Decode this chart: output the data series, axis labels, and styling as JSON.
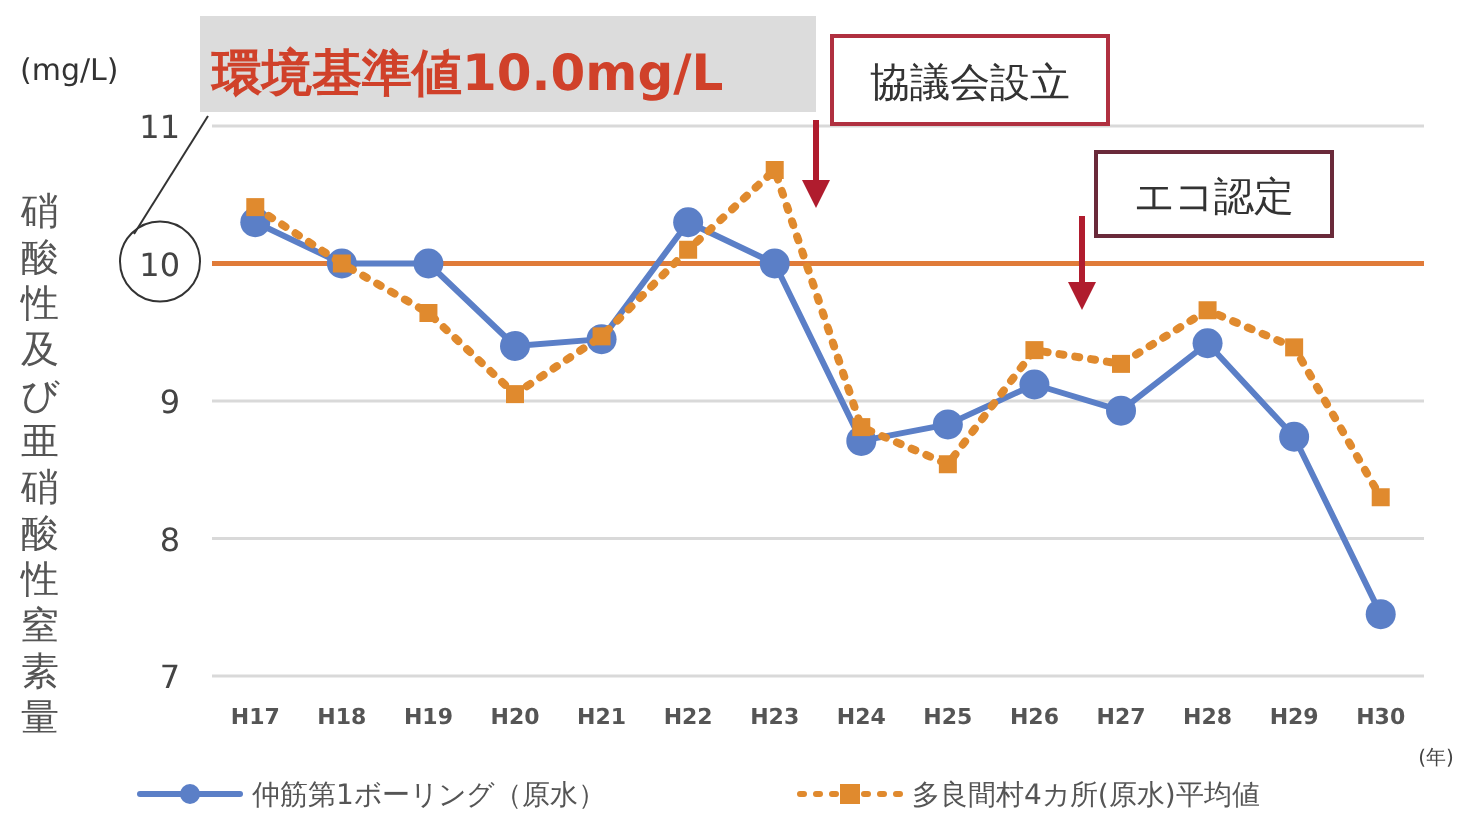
{
  "chart_data": {
    "type": "line",
    "ylabel": "硝酸性及び亜硝酸性窒素量",
    "xlabel": "(年)",
    "categories": [
      "H17",
      "H18",
      "H19",
      "H20",
      "H21",
      "H22",
      "H23",
      "H24",
      "H25",
      "H26",
      "H27",
      "H28",
      "H29",
      "H30"
    ],
    "series": [
      {
        "name": "仲筋第1ボーリング（原水）",
        "color": "#5b7fc7",
        "marker": "circle",
        "line_style": "solid",
        "values": [
          10.3,
          10.0,
          10.0,
          9.4,
          9.45,
          10.3,
          10.0,
          8.71,
          8.83,
          9.12,
          8.93,
          9.42,
          8.74,
          7.45
        ]
      },
      {
        "name": "多良間村4カ所(原水)平均値",
        "color": "#e08a2e",
        "marker": "square",
        "line_style": "dotted",
        "values": [
          10.41,
          10.0,
          9.64,
          9.05,
          9.47,
          10.1,
          10.68,
          8.81,
          8.54,
          9.37,
          9.27,
          9.66,
          9.39,
          8.3
        ]
      }
    ],
    "ylim": [
      7,
      11
    ],
    "yticks": [
      7,
      8,
      9,
      10,
      11
    ],
    "grid": "y",
    "legend": "bottom",
    "ref_lines": [
      {
        "axis": "y",
        "value": 10,
        "color": "#e07b39"
      }
    ],
    "annotations": [
      "(mg/L)",
      "協議会設立",
      "エコ認定",
      "環境基準値10.0mg/L"
    ]
  }
}
